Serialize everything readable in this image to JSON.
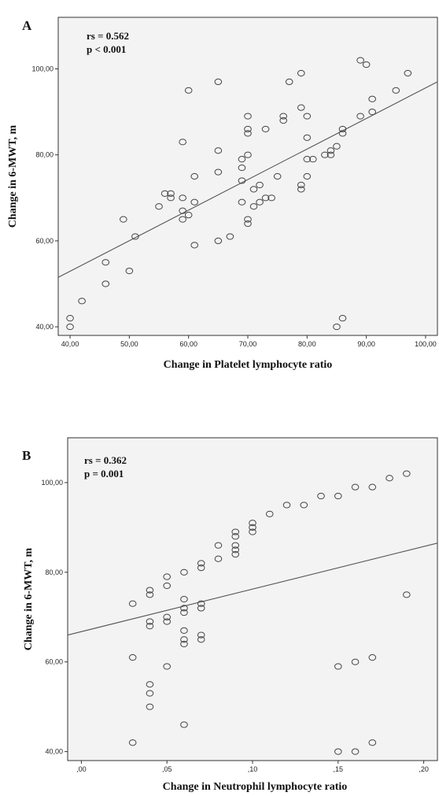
{
  "chart_data": [
    {
      "type": "scatter",
      "panel": "A",
      "stats": [
        "rs = 0.562",
        "p < 0.001"
      ],
      "xlabel": "Change in Platelet  lymphocyte ratio",
      "ylabel": "Change in 6-MWT, m",
      "xlim": [
        38,
        102
      ],
      "ylim": [
        38,
        112
      ],
      "xticks": [
        40,
        50,
        60,
        70,
        80,
        90,
        100
      ],
      "xtick_labels": [
        "40,00",
        "50,00",
        "60,00",
        "70,00",
        "80,00",
        "90,00",
        "100,00"
      ],
      "yticks": [
        40,
        60,
        80,
        100
      ],
      "ytick_labels": [
        "40,00",
        "60,00",
        "80,00",
        "100,00"
      ],
      "fit_line": [
        [
          38,
          51.5
        ],
        [
          102,
          97
        ]
      ],
      "points": [
        [
          40,
          42
        ],
        [
          40,
          40
        ],
        [
          42,
          46
        ],
        [
          46,
          50
        ],
        [
          46,
          55
        ],
        [
          49,
          65
        ],
        [
          50,
          53
        ],
        [
          51,
          61
        ],
        [
          55,
          68
        ],
        [
          56,
          71
        ],
        [
          57,
          71
        ],
        [
          57,
          70
        ],
        [
          59,
          70
        ],
        [
          59,
          67
        ],
        [
          59,
          65
        ],
        [
          59,
          83
        ],
        [
          60,
          66
        ],
        [
          60,
          95
        ],
        [
          61,
          75
        ],
        [
          61,
          69
        ],
        [
          61,
          59
        ],
        [
          65,
          97
        ],
        [
          65,
          81
        ],
        [
          65,
          76
        ],
        [
          65,
          60
        ],
        [
          67,
          61
        ],
        [
          69,
          79
        ],
        [
          69,
          77
        ],
        [
          69,
          74
        ],
        [
          69,
          69
        ],
        [
          70,
          89
        ],
        [
          70,
          86
        ],
        [
          70,
          85
        ],
        [
          70,
          80
        ],
        [
          70,
          65
        ],
        [
          70,
          64
        ],
        [
          71,
          72
        ],
        [
          71,
          68
        ],
        [
          72,
          73
        ],
        [
          72,
          69
        ],
        [
          73,
          86
        ],
        [
          73,
          70
        ],
        [
          74,
          70
        ],
        [
          75,
          75
        ],
        [
          76,
          89
        ],
        [
          76,
          88
        ],
        [
          77,
          97
        ],
        [
          79,
          99
        ],
        [
          79,
          91
        ],
        [
          79,
          73
        ],
        [
          79,
          72
        ],
        [
          80,
          89
        ],
        [
          80,
          84
        ],
        [
          80,
          79
        ],
        [
          80,
          75
        ],
        [
          81,
          79
        ],
        [
          83,
          80
        ],
        [
          84,
          80
        ],
        [
          84,
          81
        ],
        [
          85,
          82
        ],
        [
          85,
          40
        ],
        [
          86,
          86
        ],
        [
          86,
          85
        ],
        [
          86,
          42
        ],
        [
          89,
          102
        ],
        [
          89,
          89
        ],
        [
          90,
          101
        ],
        [
          91,
          93
        ],
        [
          91,
          90
        ],
        [
          95,
          95
        ],
        [
          97,
          99
        ]
      ]
    },
    {
      "type": "scatter",
      "panel": "B",
      "stats": [
        "rs = 0.362",
        "p = 0.001"
      ],
      "xlabel": "Change in Neutrophil  lymphocyte ratio",
      "ylabel": "Change in 6-MWT, m",
      "xlim": [
        -0.008,
        0.208
      ],
      "ylim": [
        38,
        110
      ],
      "xticks": [
        0.0,
        0.05,
        0.1,
        0.15,
        0.2
      ],
      "xtick_labels": [
        ",00",
        ",05",
        ",10",
        ",15",
        ",20"
      ],
      "yticks": [
        40,
        60,
        80,
        100
      ],
      "ytick_labels": [
        "40,00",
        "60,00",
        "80,00",
        "100,00"
      ],
      "fit_line": [
        [
          -0.008,
          66
        ],
        [
          0.208,
          86.5
        ]
      ],
      "points": [
        [
          0.03,
          73
        ],
        [
          0.03,
          61
        ],
        [
          0.03,
          42
        ],
        [
          0.04,
          76
        ],
        [
          0.04,
          75
        ],
        [
          0.04,
          69
        ],
        [
          0.04,
          68
        ],
        [
          0.04,
          55
        ],
        [
          0.04,
          53
        ],
        [
          0.04,
          50
        ],
        [
          0.05,
          79
        ],
        [
          0.05,
          77
        ],
        [
          0.05,
          70
        ],
        [
          0.05,
          69
        ],
        [
          0.05,
          59
        ],
        [
          0.06,
          80
        ],
        [
          0.06,
          74
        ],
        [
          0.06,
          72
        ],
        [
          0.06,
          71
        ],
        [
          0.06,
          67
        ],
        [
          0.06,
          65
        ],
        [
          0.06,
          64
        ],
        [
          0.06,
          46
        ],
        [
          0.07,
          82
        ],
        [
          0.07,
          81
        ],
        [
          0.07,
          73
        ],
        [
          0.07,
          72
        ],
        [
          0.07,
          66
        ],
        [
          0.07,
          65
        ],
        [
          0.08,
          86
        ],
        [
          0.08,
          83
        ],
        [
          0.09,
          88
        ],
        [
          0.09,
          89
        ],
        [
          0.09,
          86
        ],
        [
          0.09,
          85
        ],
        [
          0.09,
          84
        ],
        [
          0.1,
          91
        ],
        [
          0.1,
          90
        ],
        [
          0.1,
          89
        ],
        [
          0.11,
          93
        ],
        [
          0.12,
          95
        ],
        [
          0.13,
          95
        ],
        [
          0.14,
          97
        ],
        [
          0.15,
          97
        ],
        [
          0.15,
          59
        ],
        [
          0.15,
          40
        ],
        [
          0.16,
          99
        ],
        [
          0.16,
          60
        ],
        [
          0.16,
          40
        ],
        [
          0.17,
          99
        ],
        [
          0.17,
          61
        ],
        [
          0.17,
          42
        ],
        [
          0.18,
          101
        ],
        [
          0.19,
          102
        ],
        [
          0.19,
          75
        ]
      ]
    }
  ]
}
